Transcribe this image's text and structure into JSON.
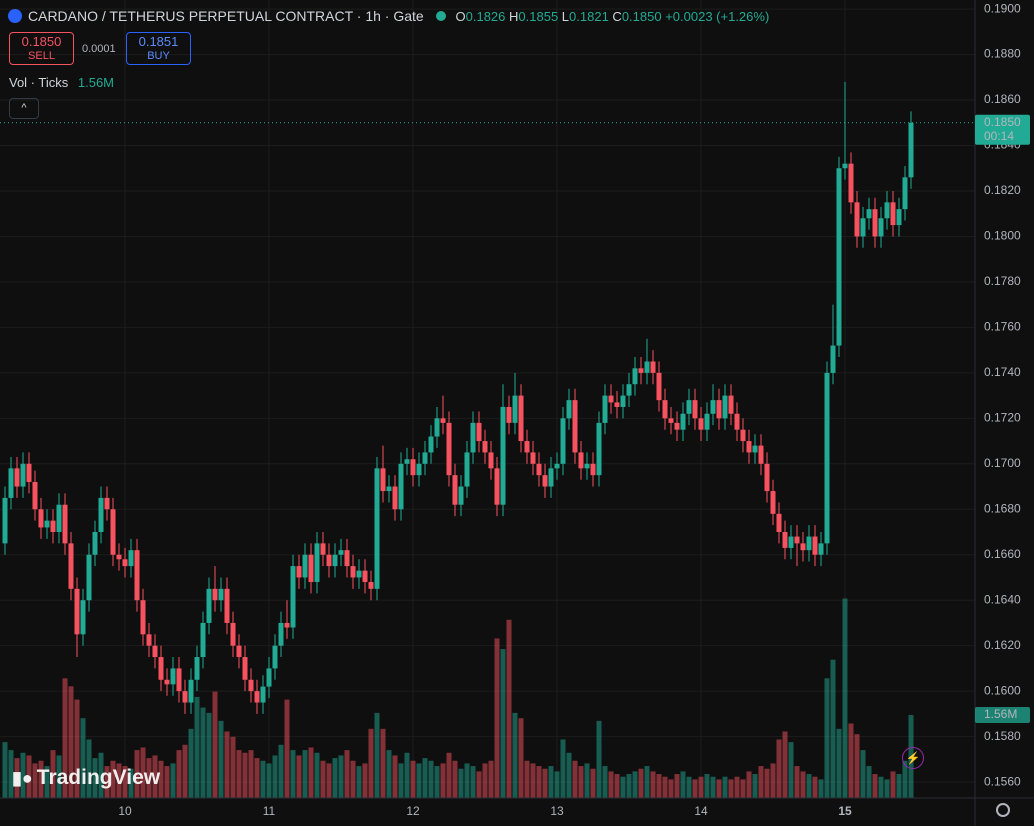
{
  "chart_data": {
    "type": "candlestick",
    "title": "CARDANO / TETHERUS PERPETUAL CONTRACT · 1h · Gate",
    "ohlc_legend": {
      "open_key": "O",
      "open": "0.1826",
      "high_key": "H",
      "high": "0.1855",
      "low_key": "L",
      "low": "0.1821",
      "close_key": "C",
      "close": "0.1850",
      "change": "+0.0023 (+1.26%)"
    },
    "trade": {
      "sell_price": "0.1850",
      "sell_label": "SELL",
      "spread": "0.0001",
      "buy_price": "0.1851",
      "buy_label": "BUY"
    },
    "volume_indicator": {
      "title": "Vol · Ticks",
      "value": "1.56M"
    },
    "watermark": "TradingView",
    "last_price_label": "0.1850",
    "countdown": "00:14",
    "up_color": "#22ab94",
    "down_color": "#f7525f",
    "grid": true,
    "categories": [
      null,
      null,
      null,
      null,
      null,
      null,
      null,
      null,
      null,
      null,
      null,
      null,
      null,
      null,
      null,
      null,
      null,
      null,
      null,
      null,
      "10",
      null,
      null,
      null,
      null,
      null,
      null,
      null,
      null,
      null,
      null,
      null,
      null,
      null,
      null,
      null,
      null,
      null,
      null,
      null,
      null,
      null,
      null,
      null,
      "11",
      null,
      null,
      null,
      null,
      null,
      null,
      null,
      null,
      null,
      null,
      null,
      null,
      null,
      null,
      null,
      null,
      null,
      null,
      null,
      null,
      null,
      null,
      null,
      "12",
      null,
      null,
      null,
      null,
      null,
      null,
      null,
      null,
      null,
      null,
      null,
      null,
      null,
      null,
      null,
      null,
      null,
      null,
      null,
      null,
      null,
      null,
      null,
      "13",
      null,
      null,
      null,
      null,
      null,
      null,
      null,
      null,
      null,
      null,
      null,
      null,
      null,
      null,
      null,
      null,
      null,
      null,
      null,
      null,
      null,
      null,
      null,
      "14",
      null,
      null,
      null,
      null,
      null,
      null,
      null,
      null,
      null,
      null,
      null,
      null,
      null,
      null,
      null,
      null,
      null,
      null,
      null,
      null,
      null,
      null,
      null,
      "15",
      null,
      null,
      null,
      null,
      null,
      null,
      null,
      null,
      null,
      null,
      null
    ],
    "open": [
      0.1665,
      0.1685,
      0.1698,
      0.169,
      0.17,
      0.1692,
      0.168,
      0.1672,
      0.1675,
      0.167,
      0.1682,
      0.1665,
      0.1645,
      0.1625,
      0.164,
      0.166,
      0.167,
      0.1685,
      0.168,
      0.166,
      0.1658,
      0.1655,
      0.1662,
      0.164,
      0.1625,
      0.162,
      0.1615,
      0.1605,
      0.1603,
      0.161,
      0.16,
      0.1595,
      0.1605,
      0.1615,
      0.163,
      0.1645,
      0.164,
      0.1645,
      0.163,
      0.162,
      0.1615,
      0.1605,
      0.16,
      0.1595,
      0.1602,
      0.161,
      0.162,
      0.163,
      0.1628,
      0.1655,
      0.165,
      0.166,
      0.1648,
      0.1665,
      0.166,
      0.1655,
      0.166,
      0.1662,
      0.1655,
      0.165,
      0.1653,
      0.1648,
      0.1645,
      0.1698,
      0.1688,
      0.169,
      0.168,
      0.17,
      0.1702,
      0.1695,
      0.17,
      0.1705,
      0.1712,
      0.172,
      0.1718,
      0.1695,
      0.1682,
      0.169,
      0.1705,
      0.1718,
      0.171,
      0.1705,
      0.1698,
      0.1682,
      0.1725,
      0.1718,
      0.173,
      0.171,
      0.1705,
      0.17,
      0.1695,
      0.169,
      0.1698,
      0.17,
      0.172,
      0.1728,
      0.1705,
      0.1698,
      0.17,
      0.1695,
      0.1718,
      0.173,
      0.1727,
      0.1725,
      0.173,
      0.1735,
      0.1742,
      0.174,
      0.1745,
      0.174,
      0.1728,
      0.172,
      0.1718,
      0.1715,
      0.1722,
      0.1728,
      0.172,
      0.1715,
      0.1722,
      0.1728,
      0.172,
      0.173,
      0.1722,
      0.1715,
      0.171,
      0.1705,
      0.1708,
      0.17,
      0.1688,
      0.1678,
      0.167,
      0.1663,
      0.1668,
      0.1665,
      0.1662,
      0.1668,
      0.166,
      0.1665,
      0.174,
      0.1752,
      0.183,
      0.1832,
      0.1815,
      0.18,
      0.1808,
      0.1812,
      0.18,
      0.1808,
      0.1815,
      0.1805,
      0.1812,
      0.1826
    ],
    "high": [
      0.169,
      0.1703,
      0.1703,
      0.1705,
      0.1705,
      0.1697,
      0.1685,
      0.168,
      0.168,
      0.1687,
      0.1687,
      0.167,
      0.165,
      0.1645,
      0.1665,
      0.1675,
      0.169,
      0.169,
      0.1685,
      0.1665,
      0.1663,
      0.1667,
      0.1667,
      0.1645,
      0.163,
      0.1625,
      0.162,
      0.161,
      0.1615,
      0.1615,
      0.1605,
      0.161,
      0.162,
      0.1635,
      0.165,
      0.1655,
      0.165,
      0.165,
      0.1635,
      0.1625,
      0.162,
      0.161,
      0.1605,
      0.1607,
      0.1615,
      0.1625,
      0.1635,
      0.164,
      0.166,
      0.166,
      0.1665,
      0.1665,
      0.167,
      0.167,
      0.1665,
      0.1665,
      0.1667,
      0.1667,
      0.166,
      0.1658,
      0.1658,
      0.1653,
      0.1703,
      0.1708,
      0.1695,
      0.1695,
      0.1705,
      0.1707,
      0.1707,
      0.1705,
      0.171,
      0.1717,
      0.1725,
      0.173,
      0.1723,
      0.17,
      0.1695,
      0.171,
      0.1723,
      0.1723,
      0.1715,
      0.171,
      0.1703,
      0.1735,
      0.173,
      0.174,
      0.1735,
      0.1715,
      0.171,
      0.1705,
      0.17,
      0.1703,
      0.1705,
      0.1725,
      0.1733,
      0.1733,
      0.171,
      0.1705,
      0.1705,
      0.1723,
      0.1735,
      0.1735,
      0.1732,
      0.1735,
      0.174,
      0.1747,
      0.1747,
      0.1755,
      0.175,
      0.1745,
      0.1733,
      0.1725,
      0.1723,
      0.1727,
      0.1733,
      0.1733,
      0.1725,
      0.1727,
      0.1735,
      0.1733,
      0.1735,
      0.1735,
      0.1727,
      0.172,
      0.1715,
      0.1713,
      0.1713,
      0.1705,
      0.1693,
      0.1683,
      0.1675,
      0.1673,
      0.1673,
      0.167,
      0.1673,
      0.1673,
      0.167,
      0.1745,
      0.177,
      0.1835,
      0.1868,
      0.1837,
      0.182,
      0.1813,
      0.1817,
      0.1817,
      0.1813,
      0.182,
      0.182,
      0.1817,
      0.1831,
      0.1855
    ],
    "low": [
      0.166,
      0.168,
      0.1685,
      0.1685,
      0.1687,
      0.1675,
      0.1667,
      0.1667,
      0.1665,
      0.1665,
      0.166,
      0.164,
      0.1615,
      0.162,
      0.1635,
      0.1655,
      0.1665,
      0.1675,
      0.1655,
      0.1653,
      0.165,
      0.165,
      0.1635,
      0.162,
      0.1615,
      0.161,
      0.16,
      0.1598,
      0.1598,
      0.1595,
      0.159,
      0.159,
      0.16,
      0.161,
      0.1625,
      0.1635,
      0.1635,
      0.1625,
      0.1615,
      0.161,
      0.16,
      0.1595,
      0.159,
      0.159,
      0.1597,
      0.1605,
      0.1615,
      0.1623,
      0.1623,
      0.1645,
      0.1645,
      0.1643,
      0.1643,
      0.1655,
      0.165,
      0.165,
      0.1655,
      0.165,
      0.1645,
      0.1645,
      0.1643,
      0.164,
      0.164,
      0.1683,
      0.1683,
      0.1675,
      0.1675,
      0.1695,
      0.169,
      0.169,
      0.1695,
      0.17,
      0.1707,
      0.1713,
      0.169,
      0.1677,
      0.1677,
      0.1685,
      0.17,
      0.1705,
      0.17,
      0.1693,
      0.1677,
      0.1677,
      0.1713,
      0.1713,
      0.1705,
      0.17,
      0.1695,
      0.169,
      0.1685,
      0.1685,
      0.1693,
      0.1695,
      0.1715,
      0.17,
      0.1693,
      0.1693,
      0.169,
      0.169,
      0.1713,
      0.1722,
      0.172,
      0.172,
      0.1725,
      0.173,
      0.1735,
      0.1735,
      0.1735,
      0.1723,
      0.1715,
      0.1713,
      0.171,
      0.171,
      0.1717,
      0.1715,
      0.171,
      0.171,
      0.1717,
      0.1715,
      0.1715,
      0.1717,
      0.171,
      0.1705,
      0.17,
      0.17,
      0.1695,
      0.1683,
      0.1673,
      0.1665,
      0.1658,
      0.1658,
      0.1655,
      0.1657,
      0.1657,
      0.1655,
      0.1655,
      0.166,
      0.1735,
      0.1747,
      0.1825,
      0.181,
      0.1795,
      0.1795,
      0.1803,
      0.1795,
      0.1795,
      0.1803,
      0.18,
      0.18,
      0.1807,
      0.1821
    ],
    "close": [
      0.1685,
      0.1698,
      0.169,
      0.17,
      0.1692,
      0.168,
      0.1672,
      0.1675,
      0.167,
      0.1682,
      0.1665,
      0.1645,
      0.1625,
      0.164,
      0.166,
      0.167,
      0.1685,
      0.168,
      0.166,
      0.1658,
      0.1655,
      0.1662,
      0.164,
      0.1625,
      0.162,
      0.1615,
      0.1605,
      0.1603,
      0.161,
      0.16,
      0.1595,
      0.1605,
      0.1615,
      0.163,
      0.1645,
      0.164,
      0.1645,
      0.163,
      0.162,
      0.1615,
      0.1605,
      0.16,
      0.1595,
      0.1602,
      0.161,
      0.162,
      0.163,
      0.1628,
      0.1655,
      0.165,
      0.166,
      0.1648,
      0.1665,
      0.166,
      0.1655,
      0.166,
      0.1662,
      0.1655,
      0.165,
      0.1653,
      0.1648,
      0.1645,
      0.1698,
      0.1688,
      0.169,
      0.168,
      0.17,
      0.1702,
      0.1695,
      0.17,
      0.1705,
      0.1712,
      0.172,
      0.1718,
      0.1695,
      0.1682,
      0.169,
      0.1705,
      0.1718,
      0.171,
      0.1705,
      0.1698,
      0.1682,
      0.1725,
      0.1718,
      0.173,
      0.171,
      0.1705,
      0.17,
      0.1695,
      0.169,
      0.1698,
      0.17,
      0.172,
      0.1728,
      0.1705,
      0.1698,
      0.17,
      0.1695,
      0.1718,
      0.173,
      0.1727,
      0.1725,
      0.173,
      0.1735,
      0.1742,
      0.174,
      0.1745,
      0.174,
      0.1728,
      0.172,
      0.1718,
      0.1715,
      0.1722,
      0.1728,
      0.172,
      0.1715,
      0.1722,
      0.1728,
      0.172,
      0.173,
      0.1722,
      0.1715,
      0.171,
      0.1705,
      0.1708,
      0.17,
      0.1688,
      0.1678,
      0.167,
      0.1663,
      0.1668,
      0.1665,
      0.1662,
      0.1668,
      0.166,
      0.1665,
      0.174,
      0.1752,
      0.183,
      0.1832,
      0.1815,
      0.18,
      0.1808,
      0.1812,
      0.18,
      0.1808,
      0.1815,
      0.1805,
      0.1812,
      0.1826,
      0.185
    ],
    "volume": [
      1.05,
      0.9,
      0.75,
      0.85,
      0.8,
      0.65,
      0.7,
      0.6,
      0.9,
      0.8,
      2.25,
      2.1,
      1.85,
      1.5,
      1.1,
      0.75,
      0.85,
      0.6,
      0.7,
      0.65,
      0.6,
      0.55,
      0.9,
      0.95,
      0.75,
      0.8,
      0.7,
      0.6,
      0.65,
      0.9,
      1.0,
      1.3,
      1.9,
      1.7,
      1.6,
      2.0,
      1.45,
      1.25,
      1.15,
      0.9,
      0.85,
      0.9,
      0.75,
      0.7,
      0.65,
      0.8,
      1.0,
      1.85,
      0.9,
      0.8,
      0.9,
      0.95,
      0.85,
      0.7,
      0.65,
      0.75,
      0.8,
      0.9,
      0.7,
      0.6,
      0.65,
      1.3,
      1.6,
      1.3,
      0.9,
      0.8,
      0.65,
      0.85,
      0.7,
      0.65,
      0.75,
      0.7,
      0.6,
      0.65,
      0.85,
      0.7,
      0.55,
      0.65,
      0.6,
      0.5,
      0.65,
      0.7,
      3.0,
      2.8,
      3.35,
      1.6,
      1.5,
      0.7,
      0.65,
      0.6,
      0.55,
      0.6,
      0.5,
      1.1,
      0.85,
      0.7,
      0.6,
      0.65,
      0.55,
      1.45,
      0.6,
      0.5,
      0.45,
      0.4,
      0.45,
      0.5,
      0.55,
      0.6,
      0.5,
      0.45,
      0.4,
      0.35,
      0.45,
      0.5,
      0.4,
      0.35,
      0.4,
      0.45,
      0.4,
      0.35,
      0.4,
      0.35,
      0.4,
      0.35,
      0.5,
      0.45,
      0.6,
      0.55,
      0.65,
      1.1,
      1.25,
      1.05,
      0.6,
      0.5,
      0.45,
      0.4,
      0.35,
      2.25,
      2.6,
      1.3,
      3.75,
      1.4,
      1.2,
      0.9,
      0.6,
      0.45,
      0.4,
      0.35,
      0.5,
      0.45,
      0.7,
      1.56
    ],
    "ylim": [
      0.1553,
      0.1904
    ],
    "yticks": [
      {
        "value": 0.156,
        "label": "0.1560"
      },
      {
        "value": 0.158,
        "label": "0.1580"
      },
      {
        "value": 0.16,
        "label": "0.1600"
      },
      {
        "value": 0.162,
        "label": "0.1620"
      },
      {
        "value": 0.164,
        "label": "0.1640"
      },
      {
        "value": 0.166,
        "label": "0.1660"
      },
      {
        "value": 0.168,
        "label": "0.1680"
      },
      {
        "value": 0.17,
        "label": "0.1700"
      },
      {
        "value": 0.172,
        "label": "0.1720"
      },
      {
        "value": 0.174,
        "label": "0.1740"
      },
      {
        "value": 0.176,
        "label": "0.1760"
      },
      {
        "value": 0.178,
        "label": "0.1780"
      },
      {
        "value": 0.18,
        "label": "0.1800"
      },
      {
        "value": 0.182,
        "label": "0.1820"
      },
      {
        "value": 0.184,
        "label": "0.1840"
      },
      {
        "value": 0.186,
        "label": "0.1860"
      },
      {
        "value": 0.188,
        "label": "0.1880"
      },
      {
        "value": 0.19,
        "label": "0.1900"
      }
    ]
  }
}
